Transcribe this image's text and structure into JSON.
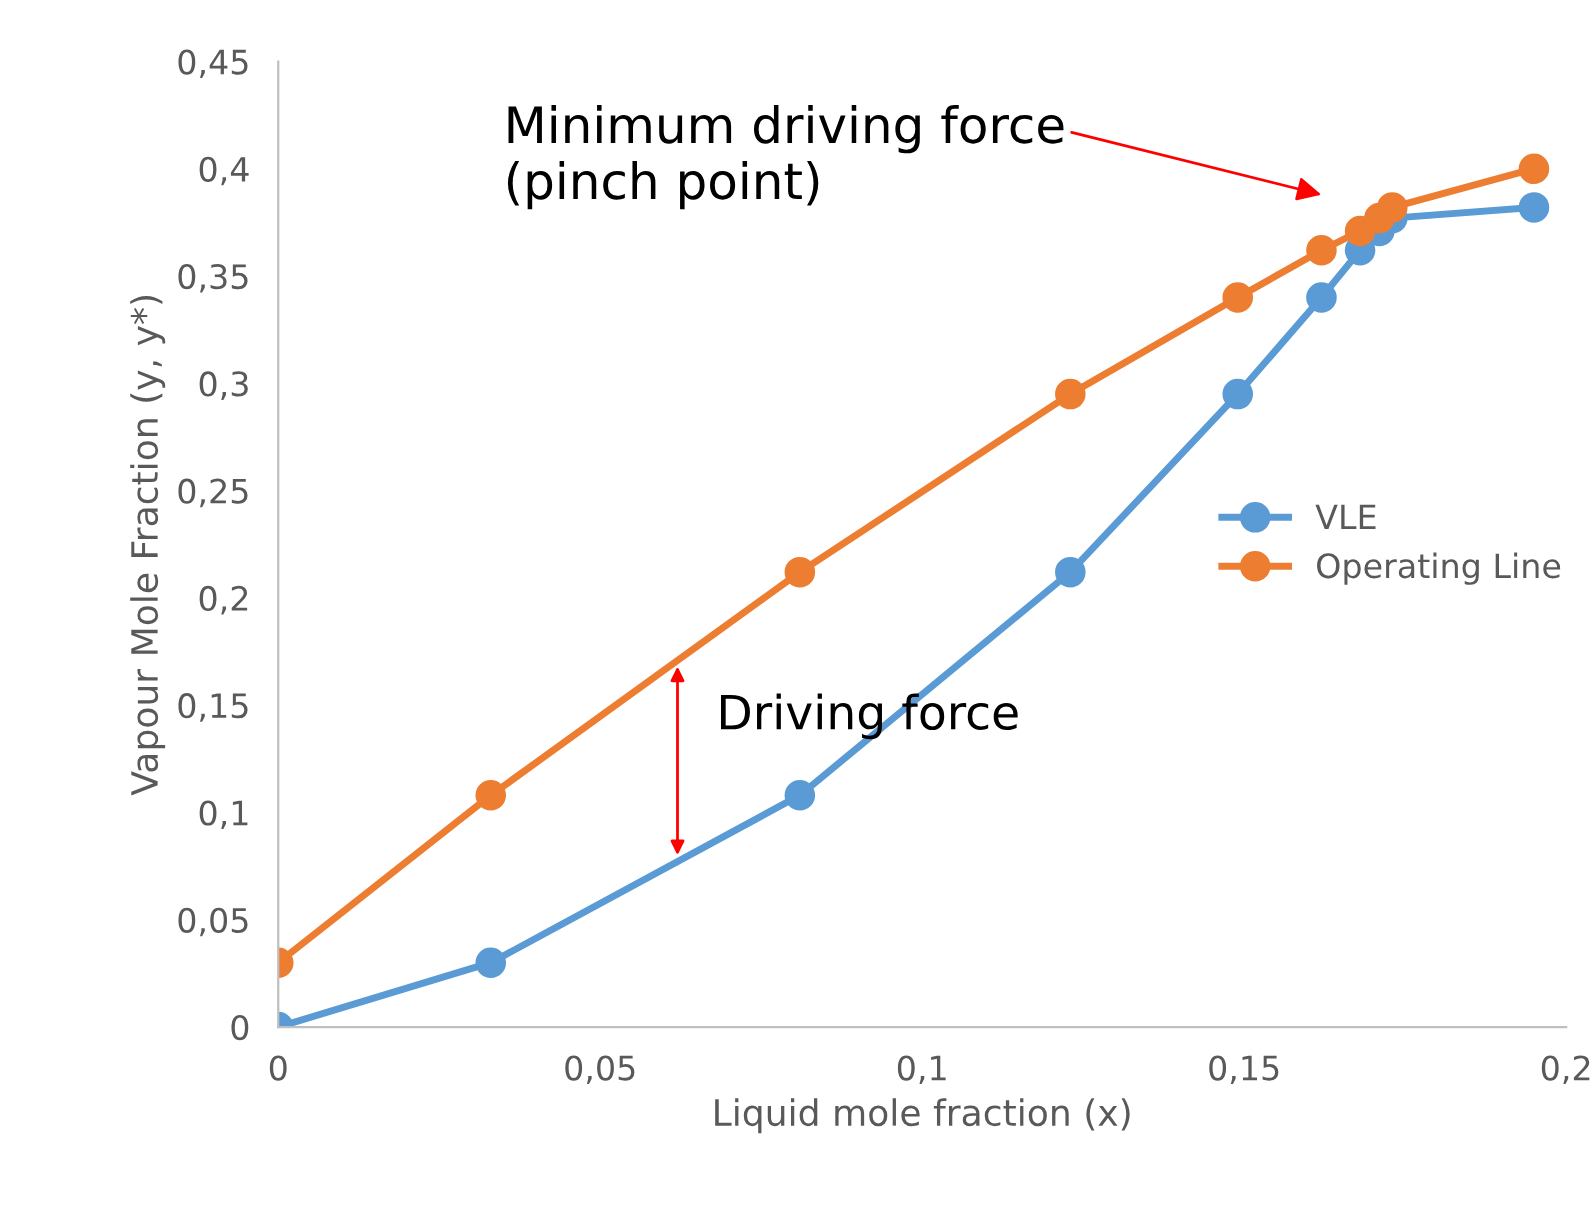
{
  "chart_data": {
    "type": "line",
    "xlabel": "Liquid mole fraction (x)",
    "ylabel": "Vapour Mole Fraction (y, y*)",
    "series": [
      {
        "name": "VLE",
        "color": "#5b9bd5",
        "x": [
          0,
          0.033,
          0.081,
          0.123,
          0.149,
          0.162,
          0.168,
          0.171,
          0.173,
          0.195
        ],
        "values": [
          0,
          0.03,
          0.108,
          0.212,
          0.295,
          0.34,
          0.362,
          0.371,
          0.377,
          0.382
        ]
      },
      {
        "name": "Operating Line",
        "color": "#ed7d31",
        "x": [
          0,
          0.033,
          0.081,
          0.123,
          0.149,
          0.162,
          0.168,
          0.171,
          0.173,
          0.195
        ],
        "values": [
          0.03,
          0.108,
          0.212,
          0.295,
          0.34,
          0.362,
          0.371,
          0.377,
          0.382,
          0.4
        ]
      }
    ],
    "xlim": [
      0,
      0.2
    ],
    "ylim": [
      0,
      0.45
    ],
    "xticks": [
      0,
      {
        "value": 0.05,
        "label": "0,05"
      },
      {
        "value": 0.1,
        "label": "0,1"
      },
      {
        "value": 0.15,
        "label": "0,15"
      },
      {
        "value": 0.2,
        "label": "0,2"
      }
    ],
    "yticks": [
      0,
      {
        "value": 0.05,
        "label": "0,05"
      },
      {
        "value": 0.1,
        "label": "0,1"
      },
      {
        "value": 0.15,
        "label": "0,15"
      },
      {
        "value": 0.2,
        "label": "0,2"
      },
      {
        "value": 0.25,
        "label": "0,25"
      },
      {
        "value": 0.3,
        "label": "0,3"
      },
      {
        "value": 0.35,
        "label": "0,35"
      },
      {
        "value": 0.4,
        "label": "0,4"
      },
      {
        "value": 0.45,
        "label": "0,45"
      }
    ],
    "annotations": [
      "Minimum driving force\n(pinch point)",
      {
        "text": "Driving force",
        "x": 0.062,
        "y": 0.171
      }
    ],
    "marker": "circle",
    "line_style": "solid",
    "grid": false,
    "legend": "right"
  }
}
